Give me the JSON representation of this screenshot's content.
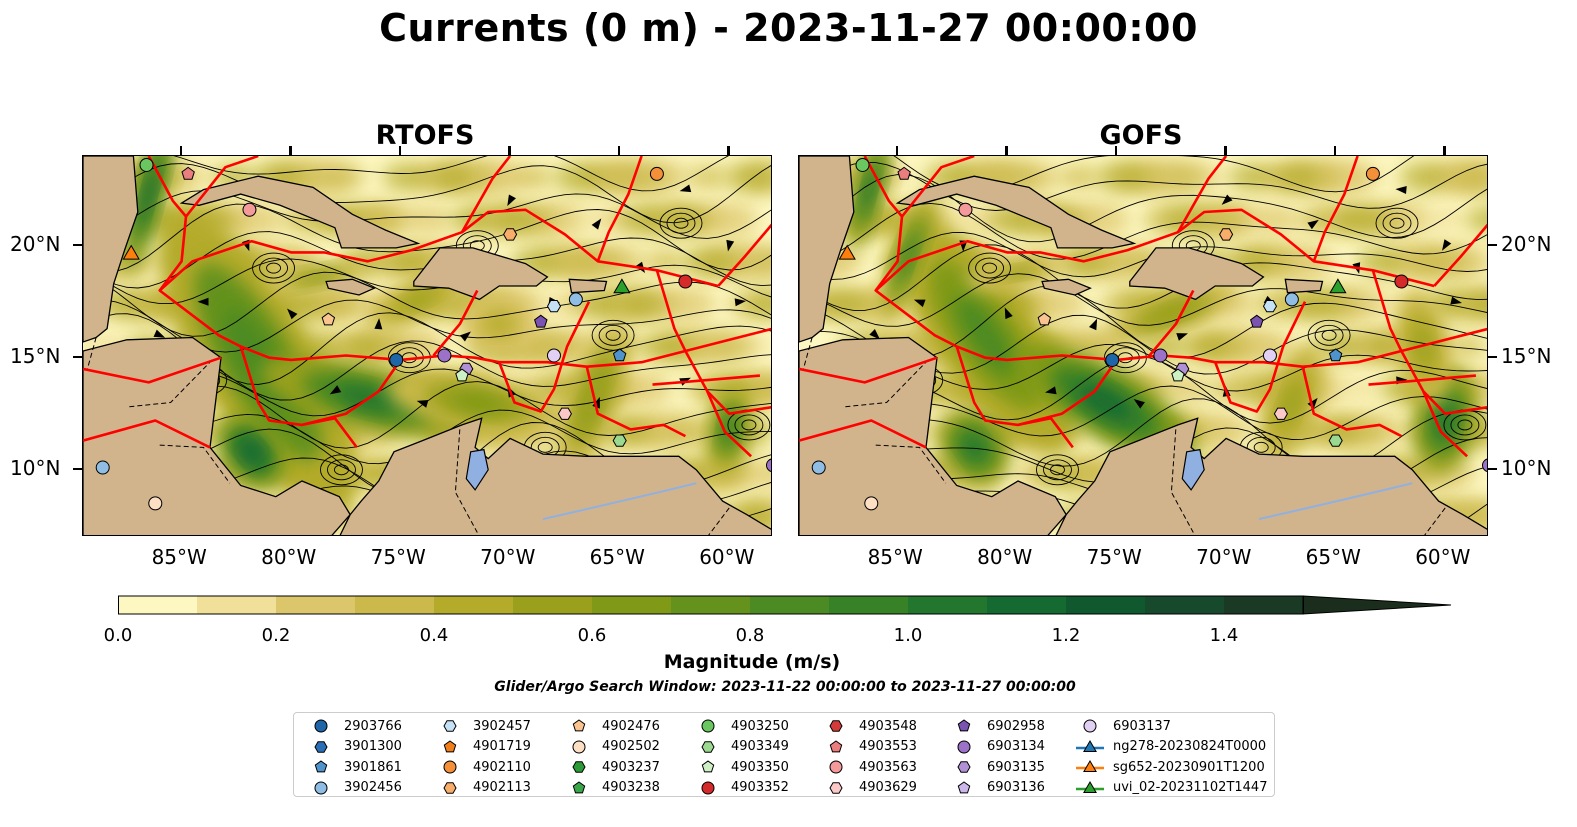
{
  "title": "Currents (0 m) - 2023-11-27 00:00:00",
  "panels": [
    {
      "title": "RTOFS"
    },
    {
      "title": "GOFS"
    }
  ],
  "map": {
    "lon_range": [
      -89.5,
      -58
    ],
    "lat_range": [
      7,
      24
    ],
    "lat_ticks": [
      {
        "value": 20,
        "label": "20°N"
      },
      {
        "value": 15,
        "label": "15°N"
      },
      {
        "value": 10,
        "label": "10°N"
      }
    ],
    "lon_ticks": [
      {
        "value": -85,
        "label": "85°W"
      },
      {
        "value": -80,
        "label": "80°W"
      },
      {
        "value": -75,
        "label": "75°W"
      },
      {
        "value": -70,
        "label": "70°W"
      },
      {
        "value": -65,
        "label": "65°W"
      },
      {
        "value": -60,
        "label": "60°W"
      }
    ],
    "land_color": "#d2b48c",
    "eez_color": "#ff0000",
    "lake_color": "#8fb0e0"
  },
  "colorbar": {
    "label": "Magnitude (m/s)",
    "min": 0.0,
    "max": 1.5,
    "levels": [
      0,
      0.1,
      0.2,
      0.3,
      0.4,
      0.5,
      0.6,
      0.7,
      0.8,
      0.9,
      1.0,
      1.1,
      1.2,
      1.3,
      1.4,
      1.5
    ],
    "colors": [
      "#fdf7c1",
      "#f0e09a",
      "#dcc66b",
      "#cbb94b",
      "#b4ab2a",
      "#9aa01c",
      "#809a18",
      "#64921c",
      "#4c8a23",
      "#378127",
      "#22762e",
      "#146a30",
      "#10592e",
      "#174a2c",
      "#1a3a25"
    ],
    "extend_color": "#1b2d1c",
    "tick_labels": [
      "0.0",
      "0.2",
      "0.4",
      "0.6",
      "0.8",
      "1.0",
      "1.2",
      "1.4"
    ],
    "tick_values": [
      0.0,
      0.2,
      0.4,
      0.6,
      0.8,
      1.0,
      1.2,
      1.4
    ]
  },
  "search_window": "Glider/Argo Search Window: 2023-11-22 00:00:00 to 2023-11-27 00:00:00",
  "legend": [
    {
      "label": "2903766",
      "marker": "circle",
      "color": "#1f66a8"
    },
    {
      "label": "3901300",
      "marker": "hexagon",
      "color": "#2a6fb5"
    },
    {
      "label": "3901861",
      "marker": "pentagon",
      "color": "#4f93cc"
    },
    {
      "label": "3902456",
      "marker": "circle",
      "color": "#8fbde3"
    },
    {
      "label": "3902457",
      "marker": "hexagon",
      "color": "#c5e1f5"
    },
    {
      "label": "4901719",
      "marker": "pentagon",
      "color": "#f07e1a"
    },
    {
      "label": "4902110",
      "marker": "circle",
      "color": "#f48f3a"
    },
    {
      "label": "4902113",
      "marker": "hexagon",
      "color": "#f8ad6a"
    },
    {
      "label": "4902476",
      "marker": "pentagon",
      "color": "#f9c48f"
    },
    {
      "label": "4902502",
      "marker": "circle",
      "color": "#fde0c4"
    },
    {
      "label": "4903237",
      "marker": "hexagon",
      "color": "#2b9a37"
    },
    {
      "label": "4903238",
      "marker": "pentagon",
      "color": "#3aa648"
    },
    {
      "label": "4903250",
      "marker": "circle",
      "color": "#6ac75f"
    },
    {
      "label": "4903349",
      "marker": "hexagon",
      "color": "#9ad98f"
    },
    {
      "label": "4903350",
      "marker": "pentagon",
      "color": "#cdf0c4"
    },
    {
      "label": "4903352",
      "marker": "circle",
      "color": "#d62a2a"
    },
    {
      "label": "4903548",
      "marker": "hexagon",
      "color": "#d43a3a"
    },
    {
      "label": "4903553",
      "marker": "pentagon",
      "color": "#ea7d7d"
    },
    {
      "label": "4903563",
      "marker": "circle",
      "color": "#f59a9a"
    },
    {
      "label": "4903629",
      "marker": "hexagon",
      "color": "#fcc8c8"
    },
    {
      "label": "6902958",
      "marker": "pentagon",
      "color": "#7a54b0"
    },
    {
      "label": "6903134",
      "marker": "circle",
      "color": "#9b72c8"
    },
    {
      "label": "6903135",
      "marker": "hexagon",
      "color": "#b190d6"
    },
    {
      "label": "6903136",
      "marker": "pentagon",
      "color": "#cdb6ea"
    },
    {
      "label": "6903137",
      "marker": "circle",
      "color": "#e1cff4"
    },
    {
      "label": "ng278-20230824T0000",
      "marker": "triangle-line",
      "color": "#1f77b4"
    },
    {
      "label": "sg652-20230901T1200",
      "marker": "triangle-line",
      "color": "#ff7f0e"
    },
    {
      "label": "uvi_02-20231102T1447",
      "marker": "triangle-line",
      "color": "#2ca02c"
    }
  ],
  "floats": [
    {
      "lon": -75.2,
      "lat": 14.9,
      "legend": 0,
      "panels": [
        0,
        1
      ]
    },
    {
      "lon": -68.0,
      "lat": 15.1,
      "legend": 24,
      "panels": [
        0,
        1
      ]
    },
    {
      "lon": -73.0,
      "lat": 15.1,
      "legend": 21,
      "panels": [
        0,
        1
      ]
    },
    {
      "lon": -65.0,
      "lat": 15.1,
      "legend": 2,
      "panels": [
        0,
        1
      ]
    },
    {
      "lon": -72.0,
      "lat": 14.5,
      "legend": 22,
      "panels": [
        0,
        1
      ]
    },
    {
      "lon": -72.2,
      "lat": 14.2,
      "legend": 14,
      "panels": [
        0,
        1
      ]
    },
    {
      "lon": -68.6,
      "lat": 16.6,
      "legend": 20,
      "panels": [
        0,
        1
      ]
    },
    {
      "lon": -67.0,
      "lat": 17.6,
      "legend": 3,
      "panels": [
        0,
        1
      ]
    },
    {
      "lon": -68.0,
      "lat": 17.3,
      "legend": 4,
      "panels": [
        0,
        1
      ]
    },
    {
      "lon": -62.0,
      "lat": 18.4,
      "legend": 15,
      "panels": [
        0,
        1
      ]
    },
    {
      "lon": -63.3,
      "lat": 23.2,
      "legend": 6,
      "panels": [
        0,
        1
      ]
    },
    {
      "lon": -70.0,
      "lat": 20.5,
      "legend": 7,
      "panels": [
        0,
        1
      ]
    },
    {
      "lon": -81.9,
      "lat": 21.6,
      "legend": 18,
      "panels": [
        0,
        1
      ]
    },
    {
      "lon": -84.7,
      "lat": 23.2,
      "legend": 17,
      "panels": [
        0,
        1
      ]
    },
    {
      "lon": -86.6,
      "lat": 23.6,
      "legend": 12,
      "panels": [
        0,
        1
      ]
    },
    {
      "lon": -78.3,
      "lat": 16.7,
      "legend": 8,
      "panels": [
        0,
        1
      ]
    },
    {
      "lon": -67.5,
      "lat": 12.5,
      "legend": 19,
      "panels": [
        0,
        1
      ]
    },
    {
      "lon": -65.0,
      "lat": 11.3,
      "legend": 13,
      "panels": [
        0,
        1
      ]
    },
    {
      "lon": -88.6,
      "lat": 10.1,
      "legend": 3,
      "panels": [
        0,
        1
      ]
    },
    {
      "lon": -86.2,
      "lat": 8.5,
      "legend": 9,
      "panels": [
        0,
        1
      ]
    },
    {
      "lon": -58.0,
      "lat": 10.2,
      "legend": 21,
      "panels": [
        0,
        1
      ]
    }
  ],
  "gliders": [
    {
      "lon": -87.3,
      "lat": 19.6,
      "legend": 26
    },
    {
      "lon": -64.9,
      "lat": 18.1,
      "legend": 27
    }
  ]
}
